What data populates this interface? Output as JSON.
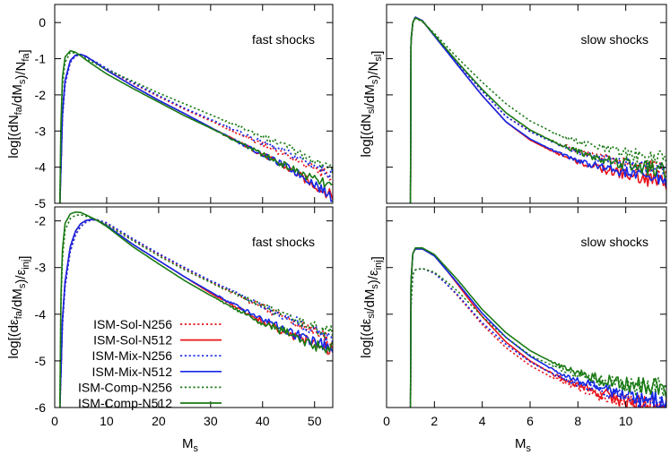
{
  "colors": {
    "ISM-Sol": "#e8141b",
    "ISM-Mix": "#1428e6",
    "ISM-Comp": "#1a7a14"
  },
  "legend": [
    {
      "label": "ISM-Sol-N256",
      "color": "#e8141b",
      "dash": "dotted"
    },
    {
      "label": "ISM-Sol-N512",
      "color": "#e8141b",
      "dash": "solid"
    },
    {
      "label": "ISM-Mix-N256",
      "color": "#1428e6",
      "dash": "dotted"
    },
    {
      "label": "ISM-Mix-N512",
      "color": "#1428e6",
      "dash": "solid"
    },
    {
      "label": "ISM-Comp-N256",
      "color": "#1a7a14",
      "dash": "dotted"
    },
    {
      "label": "ISM-Comp-N512",
      "color": "#1a7a14",
      "dash": "solid"
    }
  ],
  "chart_data": [
    {
      "id": "tl",
      "type": "line",
      "annotation": "fast shocks",
      "ylabel": "log[(dN_fa/dM_s)/N_fa]",
      "xlabel": "",
      "xlim": [
        0,
        53.5
      ],
      "ylim": [
        -5,
        0.5
      ],
      "yticks": [
        0,
        -1,
        -2,
        -3,
        -4,
        -5
      ],
      "xticks": [],
      "series": [
        {
          "name": "ISM-Sol-N256",
          "x": [
            1,
            1.5,
            2,
            3,
            4,
            5,
            6,
            8,
            10,
            15,
            20,
            25,
            30,
            35,
            40,
            45,
            50,
            53.5
          ],
          "y": [
            -5,
            -2.6,
            -1.7,
            -1.1,
            -0.92,
            -0.9,
            -0.95,
            -1.1,
            -1.28,
            -1.68,
            -2.05,
            -2.4,
            -2.72,
            -3.05,
            -3.38,
            -3.7,
            -4.05,
            -4.3
          ]
        },
        {
          "name": "ISM-Sol-N512",
          "x": [
            1,
            1.5,
            2,
            3,
            4,
            5,
            6,
            8,
            10,
            15,
            20,
            25,
            30,
            35,
            40,
            45,
            50,
            53.5
          ],
          "y": [
            -5,
            -2.5,
            -1.6,
            -1.05,
            -0.9,
            -0.88,
            -0.93,
            -1.12,
            -1.32,
            -1.75,
            -2.15,
            -2.52,
            -2.9,
            -3.28,
            -3.65,
            -4.05,
            -4.5,
            -4.8
          ]
        },
        {
          "name": "ISM-Mix-N256",
          "x": [
            1,
            1.5,
            2,
            3,
            4,
            5,
            6,
            8,
            10,
            15,
            20,
            25,
            30,
            35,
            40,
            45,
            50,
            53.5
          ],
          "y": [
            -5,
            -2.6,
            -1.7,
            -1.1,
            -0.92,
            -0.9,
            -0.95,
            -1.1,
            -1.27,
            -1.66,
            -2.02,
            -2.37,
            -2.68,
            -3.0,
            -3.32,
            -3.62,
            -3.95,
            -4.2
          ]
        },
        {
          "name": "ISM-Mix-N512",
          "x": [
            1,
            1.5,
            2,
            3,
            4,
            5,
            6,
            8,
            10,
            15,
            20,
            25,
            30,
            35,
            40,
            45,
            50,
            53.5
          ],
          "y": [
            -5,
            -2.5,
            -1.6,
            -1.05,
            -0.9,
            -0.88,
            -0.93,
            -1.12,
            -1.32,
            -1.75,
            -2.15,
            -2.52,
            -2.9,
            -3.28,
            -3.65,
            -4.02,
            -4.45,
            -4.85
          ]
        },
        {
          "name": "ISM-Comp-N256",
          "x": [
            1,
            1.2,
            1.5,
            2,
            3,
            4,
            5,
            6,
            8,
            10,
            15,
            20,
            25,
            30,
            35,
            40,
            45,
            50,
            53.5
          ],
          "y": [
            -5,
            -3,
            -1.7,
            -1.1,
            -0.82,
            -0.85,
            -0.92,
            -1.0,
            -1.15,
            -1.3,
            -1.62,
            -1.95,
            -2.25,
            -2.55,
            -2.85,
            -3.15,
            -3.45,
            -3.82,
            -4.1
          ]
        },
        {
          "name": "ISM-Comp-N512",
          "x": [
            1,
            1.2,
            1.5,
            2,
            3,
            4,
            5,
            6,
            8,
            10,
            15,
            20,
            25,
            30,
            35,
            40,
            45,
            50,
            53.5
          ],
          "y": [
            -5,
            -2.8,
            -1.5,
            -0.95,
            -0.78,
            -0.82,
            -0.92,
            -1.03,
            -1.23,
            -1.42,
            -1.82,
            -2.2,
            -2.58,
            -2.92,
            -3.28,
            -3.65,
            -4.0,
            -4.35,
            -4.55
          ]
        }
      ]
    },
    {
      "id": "tr",
      "type": "line",
      "annotation": "slow shocks",
      "ylabel": "log[(dN_sl/dM_s)/N_sl]",
      "xlabel": "",
      "xlim": [
        0,
        11.7
      ],
      "ylim": [
        -5,
        0.5
      ],
      "yticks": [],
      "xticks": [],
      "series": [
        {
          "name": "ISM-Sol-N256",
          "x": [
            1,
            1.02,
            1.1,
            1.2,
            1.5,
            2,
            3,
            4,
            5,
            6,
            7,
            8,
            9,
            10,
            11,
            11.7
          ],
          "y": [
            -5,
            -0.5,
            0.0,
            0.15,
            0.05,
            -0.35,
            -1.15,
            -1.9,
            -2.6,
            -3.0,
            -3.3,
            -3.55,
            -3.72,
            -3.88,
            -4.0,
            -4.05
          ]
        },
        {
          "name": "ISM-Sol-N512",
          "x": [
            1,
            1.02,
            1.1,
            1.2,
            1.5,
            2,
            3,
            4,
            5,
            6,
            7,
            8,
            9,
            10,
            11,
            11.7
          ],
          "y": [
            -5,
            -0.5,
            0.0,
            0.15,
            0.05,
            -0.37,
            -1.2,
            -2.02,
            -2.75,
            -3.25,
            -3.58,
            -3.85,
            -4.05,
            -4.2,
            -4.35,
            -4.42
          ]
        },
        {
          "name": "ISM-Mix-N256",
          "x": [
            1,
            1.02,
            1.1,
            1.2,
            1.5,
            2,
            3,
            4,
            5,
            6,
            7,
            8,
            9,
            10,
            11,
            11.7
          ],
          "y": [
            -5,
            -0.5,
            0.0,
            0.15,
            0.05,
            -0.35,
            -1.15,
            -1.9,
            -2.6,
            -3.02,
            -3.32,
            -3.58,
            -3.78,
            -3.92,
            -4.05,
            -4.12
          ]
        },
        {
          "name": "ISM-Mix-N512",
          "x": [
            1,
            1.02,
            1.1,
            1.2,
            1.5,
            2,
            3,
            4,
            5,
            6,
            7,
            8,
            9,
            10,
            11,
            11.7
          ],
          "y": [
            -5,
            -0.5,
            0.0,
            0.15,
            0.05,
            -0.37,
            -1.2,
            -2.02,
            -2.75,
            -3.22,
            -3.55,
            -3.82,
            -4.0,
            -4.15,
            -4.28,
            -4.35
          ]
        },
        {
          "name": "ISM-Comp-N256",
          "x": [
            1,
            1.02,
            1.1,
            1.2,
            1.5,
            2,
            3,
            4,
            5,
            6,
            7,
            8,
            9,
            10,
            11,
            11.7
          ],
          "y": [
            -5,
            -0.5,
            0.0,
            0.12,
            0.02,
            -0.3,
            -1.0,
            -1.65,
            -2.25,
            -2.72,
            -3.05,
            -3.3,
            -3.48,
            -3.62,
            -3.72,
            -3.78
          ]
        },
        {
          "name": "ISM-Comp-N512",
          "x": [
            1,
            1.02,
            1.1,
            1.2,
            1.5,
            2,
            3,
            4,
            5,
            6,
            7,
            8,
            9,
            10,
            11,
            11.7
          ],
          "y": [
            -5,
            -0.5,
            0.0,
            0.13,
            0.04,
            -0.34,
            -1.12,
            -1.85,
            -2.5,
            -2.97,
            -3.3,
            -3.57,
            -3.78,
            -3.93,
            -4.05,
            -4.12
          ]
        }
      ]
    },
    {
      "id": "bl",
      "type": "line",
      "annotation": "fast shocks",
      "ylabel": "log[(dε_fa/dM_s)/ε_inj]",
      "xlabel": "M_s",
      "xlim": [
        0,
        53.5
      ],
      "ylim": [
        -6,
        -1.7
      ],
      "yticks": [
        -2,
        -3,
        -4,
        -5,
        -6
      ],
      "xticks": [
        0,
        10,
        20,
        30,
        40,
        50
      ],
      "series": [
        {
          "name": "ISM-Sol-N256",
          "x": [
            1,
            1.5,
            2,
            3,
            4,
            5,
            6,
            7,
            8,
            10,
            15,
            20,
            25,
            30,
            35,
            40,
            45,
            50,
            53.5
          ],
          "y": [
            -6,
            -4.2,
            -3.4,
            -2.65,
            -2.3,
            -2.12,
            -2.03,
            -1.98,
            -1.97,
            -2.05,
            -2.4,
            -2.72,
            -3.02,
            -3.3,
            -3.58,
            -3.85,
            -4.1,
            -4.38,
            -4.6
          ]
        },
        {
          "name": "ISM-Sol-N512",
          "x": [
            1,
            1.5,
            2,
            3,
            4,
            5,
            6,
            7,
            8,
            10,
            15,
            20,
            25,
            30,
            35,
            40,
            45,
            50,
            53.5
          ],
          "y": [
            -6,
            -4.1,
            -3.3,
            -2.55,
            -2.22,
            -2.06,
            -1.99,
            -1.97,
            -1.98,
            -2.1,
            -2.5,
            -2.85,
            -3.2,
            -3.55,
            -3.85,
            -4.15,
            -4.4,
            -4.65,
            -4.8
          ]
        },
        {
          "name": "ISM-Mix-N256",
          "x": [
            1,
            1.5,
            2,
            3,
            4,
            5,
            6,
            7,
            8,
            10,
            15,
            20,
            25,
            30,
            35,
            40,
            45,
            50,
            53.5
          ],
          "y": [
            -6,
            -4.2,
            -3.4,
            -2.65,
            -2.3,
            -2.12,
            -2.03,
            -1.98,
            -1.97,
            -2.04,
            -2.38,
            -2.7,
            -3.0,
            -3.28,
            -3.55,
            -3.82,
            -4.08,
            -4.35,
            -4.55
          ]
        },
        {
          "name": "ISM-Mix-N512",
          "x": [
            1,
            1.5,
            2,
            3,
            4,
            5,
            6,
            7,
            8,
            10,
            15,
            20,
            25,
            30,
            35,
            40,
            45,
            50,
            53.5
          ],
          "y": [
            -6,
            -4.1,
            -3.3,
            -2.55,
            -2.22,
            -2.06,
            -1.99,
            -1.97,
            -1.98,
            -2.1,
            -2.5,
            -2.85,
            -3.2,
            -3.52,
            -3.82,
            -4.1,
            -4.38,
            -4.6,
            -4.75
          ]
        },
        {
          "name": "ISM-Comp-N256",
          "x": [
            1,
            1.2,
            1.5,
            2,
            3,
            4,
            5,
            6,
            8,
            10,
            15,
            20,
            25,
            30,
            35,
            40,
            45,
            50,
            53.5
          ],
          "y": [
            -6,
            -3.8,
            -2.8,
            -2.2,
            -1.95,
            -1.88,
            -1.87,
            -1.9,
            -1.97,
            -2.08,
            -2.42,
            -2.75,
            -3.05,
            -3.32,
            -3.58,
            -3.82,
            -4.05,
            -4.28,
            -4.42
          ]
        },
        {
          "name": "ISM-Comp-N512",
          "x": [
            1,
            1.2,
            1.5,
            2,
            3,
            4,
            5,
            6,
            8,
            10,
            15,
            20,
            25,
            30,
            35,
            40,
            45,
            50,
            53.5
          ],
          "y": [
            -6,
            -3.6,
            -2.6,
            -2.05,
            -1.85,
            -1.81,
            -1.82,
            -1.87,
            -1.98,
            -2.12,
            -2.55,
            -2.92,
            -3.28,
            -3.6,
            -3.9,
            -4.18,
            -4.42,
            -4.65,
            -4.75
          ]
        }
      ]
    },
    {
      "id": "br",
      "type": "line",
      "annotation": "slow shocks",
      "ylabel": "log[(dε_sl/dM_s)/ε_inj]",
      "xlabel": "M_s",
      "xlim": [
        0,
        11.7
      ],
      "ylim": [
        -6,
        -1.7
      ],
      "yticks": [],
      "xticks": [
        0,
        2,
        4,
        6,
        8,
        10
      ],
      "series": [
        {
          "name": "ISM-Sol-N256",
          "x": [
            1,
            1.02,
            1.1,
            1.2,
            1.5,
            2,
            2.5,
            3,
            4,
            5,
            6,
            7,
            8,
            9,
            10,
            11,
            11.7
          ],
          "y": [
            -6,
            -3.8,
            -3.15,
            -3.05,
            -3.02,
            -3.12,
            -3.35,
            -3.62,
            -4.22,
            -4.72,
            -5.1,
            -5.38,
            -5.58,
            -5.75,
            -5.88,
            -6.0,
            -6.05
          ]
        },
        {
          "name": "ISM-Sol-N512",
          "x": [
            1,
            1.02,
            1.1,
            1.2,
            1.5,
            2,
            2.5,
            3,
            4,
            5,
            6,
            7,
            8,
            9,
            10,
            11,
            11.7
          ],
          "y": [
            -6,
            -3.3,
            -2.7,
            -2.6,
            -2.6,
            -2.75,
            -3.05,
            -3.38,
            -4.05,
            -4.6,
            -5.0,
            -5.3,
            -5.52,
            -5.7,
            -5.85,
            -5.95,
            -6.0
          ]
        },
        {
          "name": "ISM-Mix-N256",
          "x": [
            1,
            1.02,
            1.1,
            1.2,
            1.5,
            2,
            2.5,
            3,
            4,
            5,
            6,
            7,
            8,
            9,
            10,
            11,
            11.7
          ],
          "y": [
            -6,
            -3.8,
            -3.15,
            -3.05,
            -3.02,
            -3.12,
            -3.35,
            -3.6,
            -4.18,
            -4.65,
            -5.02,
            -5.3,
            -5.5,
            -5.65,
            -5.78,
            -5.88,
            -5.92
          ]
        },
        {
          "name": "ISM-Mix-N512",
          "x": [
            1,
            1.02,
            1.1,
            1.2,
            1.5,
            2,
            2.5,
            3,
            4,
            5,
            6,
            7,
            8,
            9,
            10,
            11,
            11.7
          ],
          "y": [
            -6,
            -3.3,
            -2.7,
            -2.6,
            -2.6,
            -2.75,
            -3.05,
            -3.35,
            -3.98,
            -4.5,
            -4.9,
            -5.2,
            -5.42,
            -5.6,
            -5.72,
            -5.82,
            -5.88
          ]
        },
        {
          "name": "ISM-Comp-N256",
          "x": [
            1,
            1.02,
            1.1,
            1.2,
            1.5,
            2,
            2.5,
            3,
            4,
            5,
            6,
            7,
            8,
            9,
            10,
            11,
            11.7
          ],
          "y": [
            -6,
            -3.8,
            -3.15,
            -3.05,
            -3.02,
            -3.1,
            -3.3,
            -3.52,
            -4.05,
            -4.5,
            -4.88,
            -5.12,
            -5.3,
            -5.42,
            -5.52,
            -5.58,
            -5.6
          ]
        },
        {
          "name": "ISM-Comp-N512",
          "x": [
            1,
            1.02,
            1.1,
            1.2,
            1.5,
            2,
            2.5,
            3,
            4,
            5,
            6,
            7,
            8,
            9,
            10,
            11,
            11.7
          ],
          "y": [
            -6,
            -3.3,
            -2.7,
            -2.58,
            -2.58,
            -2.72,
            -3.0,
            -3.28,
            -3.9,
            -4.4,
            -4.78,
            -5.05,
            -5.25,
            -5.4,
            -5.5,
            -5.56,
            -5.58
          ]
        }
      ]
    }
  ]
}
